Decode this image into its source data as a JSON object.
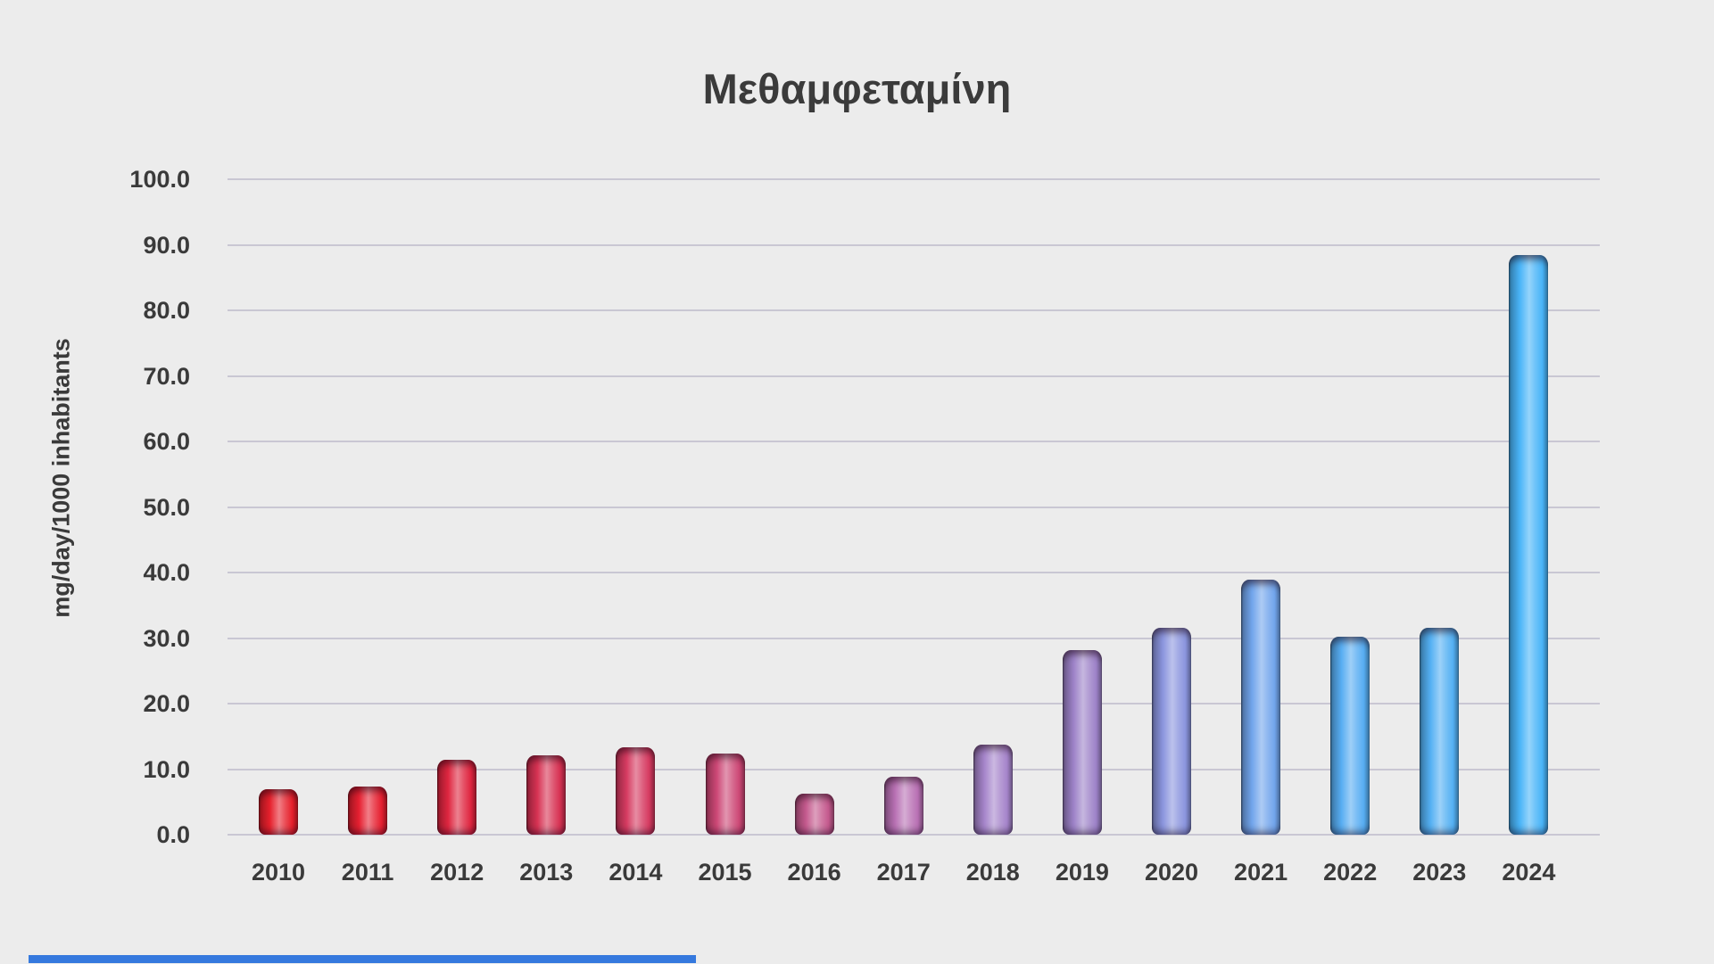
{
  "chart_data": {
    "type": "bar",
    "title": "Μεθαμφεταμίνη",
    "xlabel": "",
    "ylabel": "mg/day/1000 inhabitants",
    "ylim": [
      0,
      100
    ],
    "ytick_interval": 10,
    "ytick_format_decimals": 1,
    "grid": true,
    "legend": false,
    "categories": [
      "2010",
      "2011",
      "2012",
      "2013",
      "2014",
      "2015",
      "2016",
      "2017",
      "2018",
      "2019",
      "2020",
      "2021",
      "2022",
      "2023",
      "2024"
    ],
    "values": [
      6.9,
      7.4,
      11.4,
      12.1,
      13.3,
      12.4,
      6.3,
      8.9,
      13.7,
      28.2,
      31.5,
      38.9,
      30.2,
      31.5,
      88.4
    ],
    "bar_colors": [
      "#e6202c",
      "#e62031",
      "#df2640",
      "#d73253",
      "#d63b61",
      "#cd4876",
      "#c55a8e",
      "#b971b4",
      "#a685cb",
      "#9d82c8",
      "#8b95de",
      "#72a5ec",
      "#57adf2",
      "#54b0f3",
      "#49b4f8"
    ]
  },
  "colors": {
    "background": "#ececec",
    "gridline": "#c9c7d3",
    "text": "#3a3a3a",
    "bottom_accent": "#3579de"
  }
}
